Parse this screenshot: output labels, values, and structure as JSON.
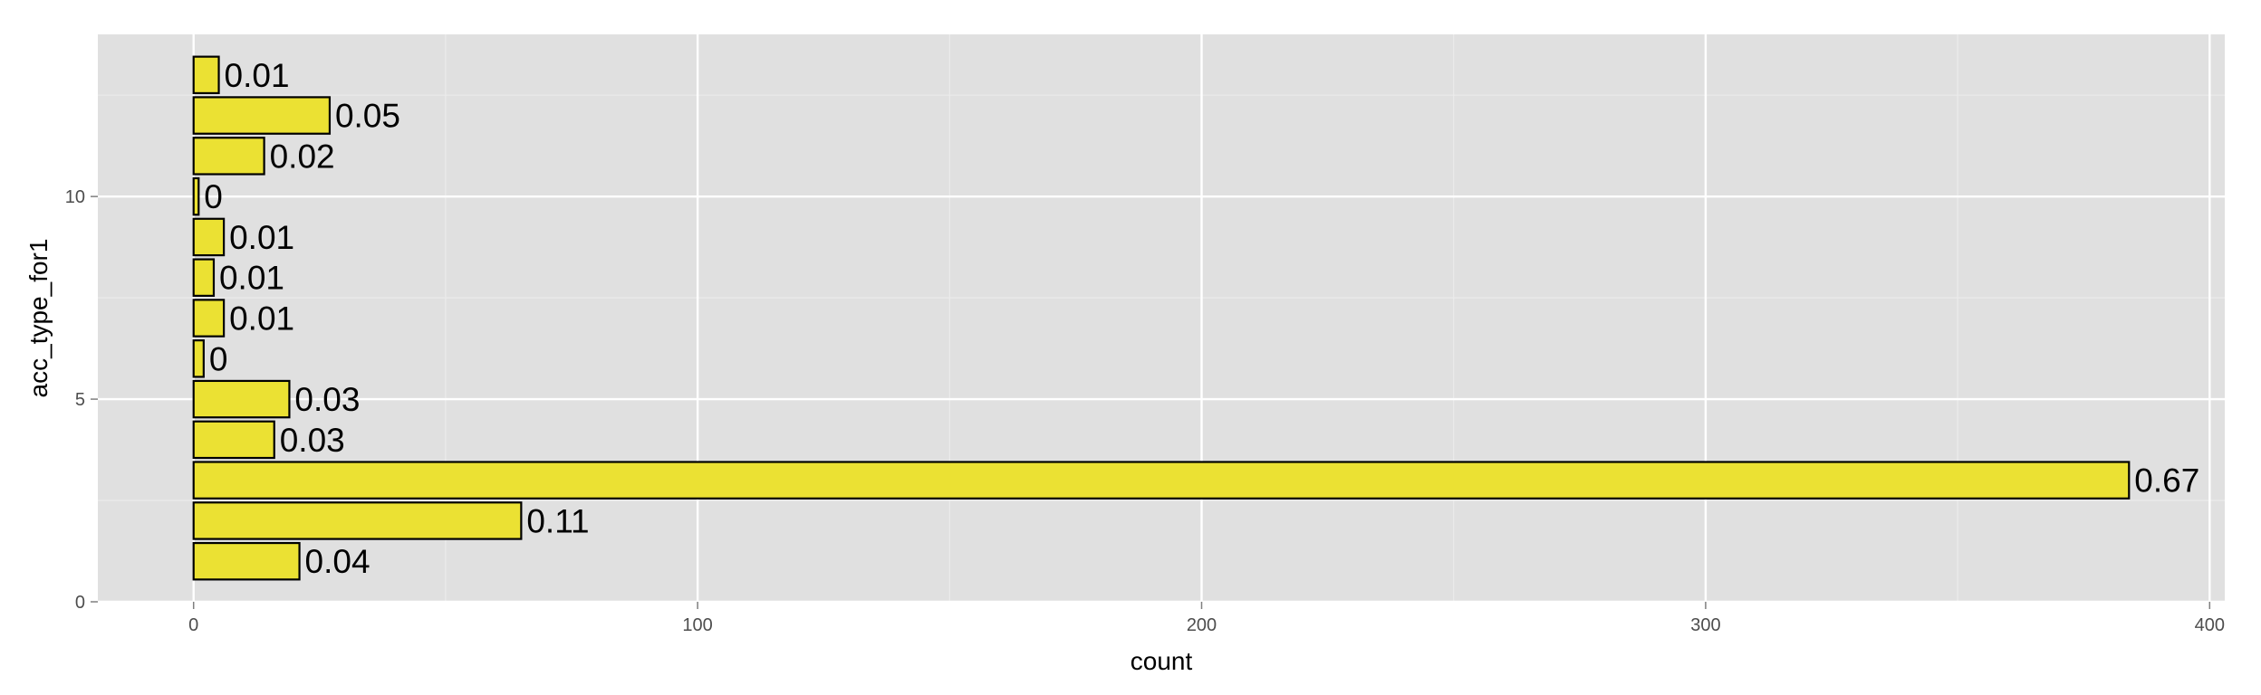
{
  "chart_data": {
    "type": "bar",
    "orientation": "horizontal",
    "xlabel": "count",
    "ylabel": "acc_type_for1",
    "xlim": [
      -19,
      403
    ],
    "ylim": [
      0,
      14
    ],
    "x_ticks": [
      0,
      100,
      200,
      300,
      400
    ],
    "y_ticks": [
      0,
      5,
      10
    ],
    "grid": true,
    "legend": "none",
    "colors": {
      "panel": "#e0e0e0",
      "grid_major": "#ffffff",
      "grid_minor": "#ebebeb",
      "bar_fill": "#ebe133",
      "bar_stroke": "#000000",
      "tick_text": "#4d4d4d"
    },
    "bars": [
      {
        "y": 1,
        "count": 21,
        "label": "0.04"
      },
      {
        "y": 2,
        "count": 65,
        "label": "0.11"
      },
      {
        "y": 3,
        "count": 384,
        "label": "0.67"
      },
      {
        "y": 4,
        "count": 16,
        "label": "0.03"
      },
      {
        "y": 5,
        "count": 19,
        "label": "0.03"
      },
      {
        "y": 6,
        "count": 2,
        "label": "0"
      },
      {
        "y": 7,
        "count": 6,
        "label": "0.01"
      },
      {
        "y": 8,
        "count": 4,
        "label": "0.01"
      },
      {
        "y": 9,
        "count": 6,
        "label": "0.01"
      },
      {
        "y": 10,
        "count": 1,
        "label": "0"
      },
      {
        "y": 11,
        "count": 14,
        "label": "0.02"
      },
      {
        "y": 12,
        "count": 27,
        "label": "0.05"
      },
      {
        "y": 13,
        "count": 5,
        "label": "0.01"
      }
    ]
  }
}
